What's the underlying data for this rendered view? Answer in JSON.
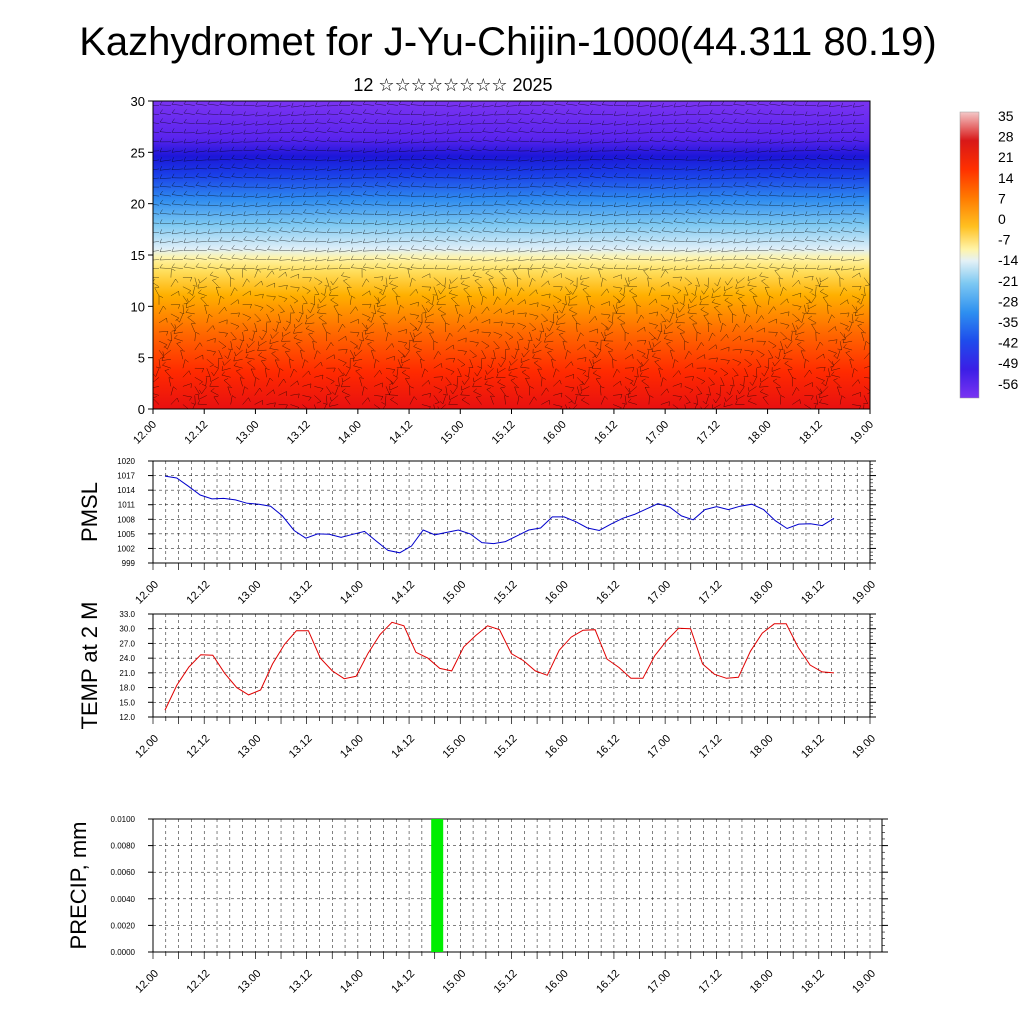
{
  "header": {
    "title": "Kazhydromet for J-Yu-Chijin-1000(44.311 80.19)",
    "subtitle": "12 ☆☆☆☆☆☆☆☆ 2025"
  },
  "x_tick_labels": [
    "12.00",
    "12.12",
    "13.00",
    "13.12",
    "14.00",
    "14.12",
    "15.00",
    "15.12",
    "16.00",
    "16.12",
    "17.00",
    "17.12",
    "18.00",
    "18.12",
    "19.00"
  ],
  "colors": {
    "pmsl_line": "#0000cc",
    "temp_line": "#e00000",
    "precip_bar": "#00ee00",
    "grid": "#000000"
  },
  "chart_data": [
    {
      "id": "cross-section",
      "type": "heatmap",
      "x_range": [
        0,
        14
      ],
      "y_range": [
        0,
        30
      ],
      "y_ticks": [
        0,
        5,
        10,
        15,
        20,
        25,
        30
      ],
      "colorbar_labels": [
        "35",
        "28",
        "21",
        "14",
        "7",
        "0",
        "-7",
        "-14",
        "-21",
        "-28",
        "-35",
        "-42",
        "-49",
        "-56"
      ],
      "colorbar_range": [
        -60,
        38
      ],
      "wind_barbs": true
    },
    {
      "id": "pmsl",
      "type": "line",
      "ylabel": "PMSL",
      "ylim": [
        999,
        1020
      ],
      "y_ticks": [
        999,
        1002,
        1005,
        1008,
        1011,
        1014,
        1017,
        1020
      ],
      "y_tick_labels": [
        "999",
        "1002",
        "1005",
        "1008",
        "1011",
        "1014",
        "1017",
        "1020"
      ],
      "grid": true,
      "values": [
        1016.9,
        1016.5,
        1014.8,
        1013.0,
        1012.2,
        1012.3,
        1012.0,
        1011.3,
        1011.1,
        1010.7,
        1008.7,
        1005.7,
        1004.1,
        1005.0,
        1004.9,
        1004.3,
        1004.9,
        1005.5,
        1003.5,
        1001.6,
        1001.1,
        1002.5,
        1005.8,
        1004.8,
        1005.3,
        1005.8,
        1005.0,
        1003.2,
        1003.0,
        1003.4,
        1004.6,
        1005.8,
        1006.2,
        1008.5,
        1008.5,
        1007.5,
        1006.2,
        1005.7,
        1007.0,
        1008.2,
        1009.0,
        1010.1,
        1011.2,
        1010.5,
        1008.7,
        1007.9,
        1010.0,
        1010.6,
        1010.0,
        1010.7,
        1011.1,
        1010.0,
        1007.7,
        1006.1,
        1007.0,
        1007.1,
        1006.7,
        1008.2
      ]
    },
    {
      "id": "temp",
      "type": "line",
      "ylabel": "TEMP at 2 M",
      "ylim": [
        12,
        33
      ],
      "y_ticks": [
        12,
        15,
        18,
        21,
        24,
        27,
        30,
        33
      ],
      "y_tick_labels": [
        "12.0",
        "15.0",
        "18.0",
        "21.0",
        "24.0",
        "27.0",
        "30.0",
        "33.0"
      ],
      "grid": true,
      "values": [
        13.4,
        18.5,
        22.2,
        24.7,
        24.6,
        20.9,
        18.0,
        16.5,
        17.5,
        22.8,
        26.8,
        29.6,
        29.6,
        24.0,
        21.4,
        19.8,
        20.3,
        25.0,
        28.8,
        31.3,
        30.6,
        25.2,
        24.0,
        21.9,
        21.4,
        26.3,
        28.6,
        30.6,
        29.8,
        24.9,
        23.5,
        21.4,
        20.5,
        25.6,
        28.3,
        29.7,
        29.8,
        23.8,
        22.1,
        19.9,
        19.9,
        24.5,
        27.6,
        30.1,
        30.0,
        22.8,
        20.7,
        19.9,
        20.1,
        25.4,
        29.1,
        31.0,
        31.0,
        26.2,
        22.6,
        21.2,
        21.0
      ]
    },
    {
      "id": "precip",
      "type": "bar",
      "ylabel": "PRECIP, mm",
      "ylim": [
        0,
        0.01
      ],
      "y_ticks": [
        0,
        0.002,
        0.004,
        0.006,
        0.008,
        0.01
      ],
      "y_tick_labels": [
        "0.0000",
        "0.0020",
        "0.0040",
        "0.0060",
        "0.0080",
        "0.0100"
      ],
      "grid": true,
      "bars": [
        {
          "x": 5.55,
          "value": 0.01
        }
      ]
    }
  ]
}
